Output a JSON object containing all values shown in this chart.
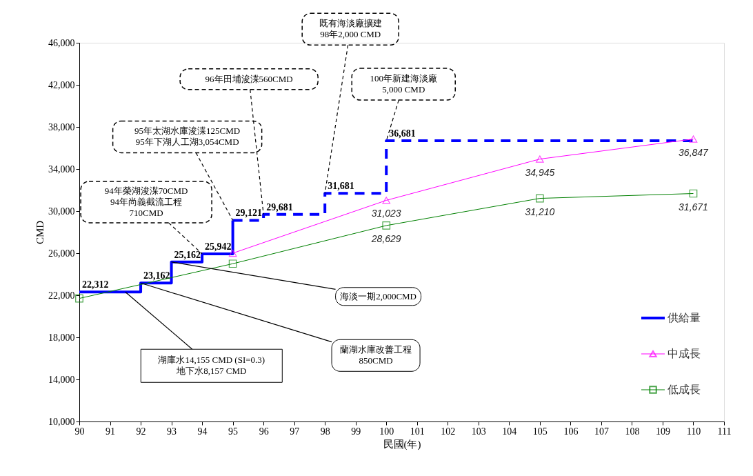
{
  "chart_data": {
    "type": "line",
    "xlabel": "民國(年)",
    "ylabel": "CMD",
    "xlim": [
      90,
      111
    ],
    "xticks": [
      90,
      91,
      92,
      93,
      94,
      95,
      96,
      97,
      98,
      99,
      100,
      101,
      102,
      103,
      104,
      105,
      106,
      107,
      108,
      109,
      110,
      111
    ],
    "ylim": [
      10000,
      46000
    ],
    "yticks": [
      {
        "value": 10000,
        "label": "10,000"
      },
      {
        "value": 14000,
        "label": "14,000"
      },
      {
        "value": 18000,
        "label": "18,000"
      },
      {
        "value": 22000,
        "label": "22,000"
      },
      {
        "value": 26000,
        "label": "26,000"
      },
      {
        "value": 30000,
        "label": "30,000"
      },
      {
        "value": 34000,
        "label": "34,000"
      },
      {
        "value": 38000,
        "label": "38,000"
      },
      {
        "value": 42000,
        "label": "42,000"
      },
      {
        "value": 46000,
        "label": "46,000"
      }
    ],
    "grid": false,
    "legend": "right",
    "series": [
      {
        "name": "供給量",
        "type": "step",
        "color": "#0000ff",
        "line_style": "solid",
        "marker": "none",
        "x": [
          90,
          92,
          93,
          94,
          95
        ],
        "values": [
          22312,
          23162,
          25162,
          25942,
          29121
        ],
        "value_labels": [
          "22,312",
          "23,162",
          "25,162",
          "25,942",
          null
        ]
      },
      {
        "type": "step",
        "color": "#0000ff",
        "line_style": "dashed",
        "marker": "none",
        "x": [
          95,
          96,
          98,
          100,
          110
        ],
        "values": [
          29121,
          29681,
          31681,
          36681,
          36681
        ],
        "value_labels": [
          "29,121",
          "29,681",
          "31,681",
          "36,681",
          null
        ]
      },
      {
        "name": "中成長",
        "color": "#ff00ff",
        "line_style": "solid",
        "marker": "triangle",
        "x": [
          95,
          100,
          105,
          110
        ],
        "values": [
          26000,
          31023,
          34945,
          36847
        ],
        "value_labels": [
          null,
          "31,023",
          "34,945",
          "36,847"
        ]
      },
      {
        "name": "低成長",
        "color": "#008000",
        "line_style": "solid",
        "marker": "square",
        "x": [
          90,
          95,
          100,
          105,
          110
        ],
        "values": [
          21700,
          25000,
          28629,
          31210,
          31671
        ],
        "value_labels": [
          null,
          null,
          "28,629",
          "31,210",
          "31,671"
        ]
      }
    ],
    "annotations": [
      {
        "text": "94年榮湖浚渫70CMD\n94年尚義截流工程\n710CMD",
        "x": 94,
        "y": 25942
      },
      {
        "text": "95年太湖水庫浚渫125CMD\n95年下湖人工湖3,054CMD",
        "x": 95,
        "y": 29121
      },
      {
        "text": "96年田埔浚渫560CMD",
        "x": 96,
        "y": 29681
      },
      {
        "text": "既有海淡廠擴建\n98年2,000 CMD",
        "x": 98,
        "y": 31681
      },
      {
        "text": "100年新建海淡廠\n5,000 CMD",
        "x": 100,
        "y": 36681
      },
      {
        "text": "海淡一期2,000CMD",
        "x": 93,
        "y": 25162
      },
      {
        "text": "蘭湖水庫改善工程\n850CMD",
        "x": 92,
        "y": 23162
      },
      {
        "text": "湖庫水14,155 CMD (SI=0.3)\n地下水8,157 CMD",
        "x": 91.5,
        "y": 22312
      }
    ]
  }
}
